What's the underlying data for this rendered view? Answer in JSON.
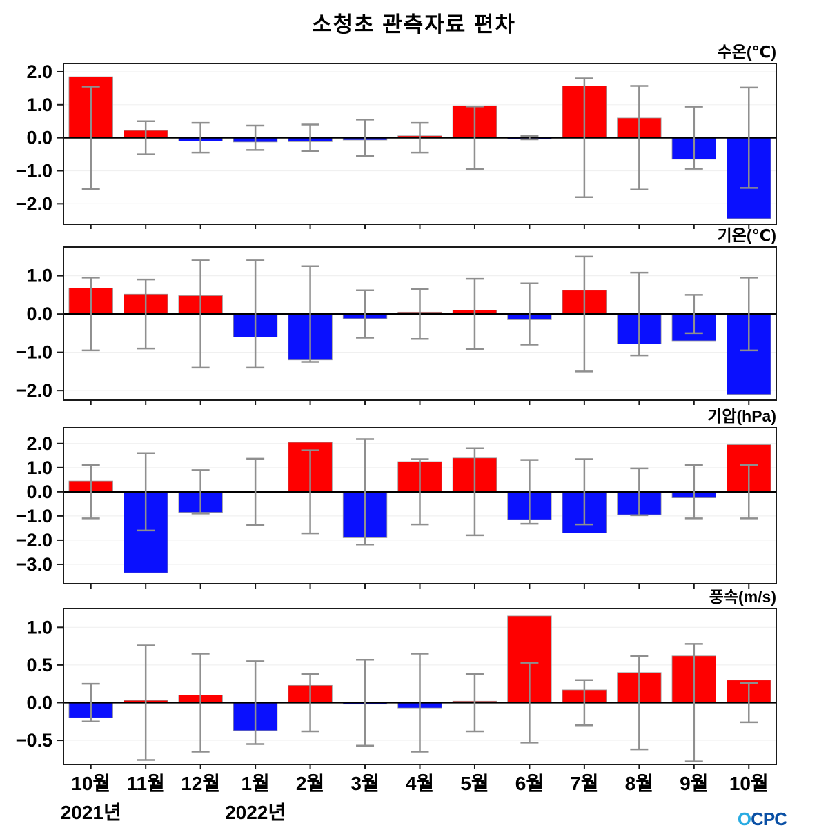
{
  "title": "소청초 관측자료 편차",
  "x_axis": {
    "categories": [
      "10월",
      "11월",
      "12월",
      "1월",
      "2월",
      "3월",
      "4월",
      "5월",
      "6월",
      "7월",
      "8월",
      "9월",
      "10월"
    ],
    "year_labels": [
      {
        "text": "2021년",
        "month_index": 0
      },
      {
        "text": "2022년",
        "month_index": 3
      }
    ]
  },
  "logo": {
    "first": "O",
    "rest": "CPC"
  },
  "style": {
    "positive": "#fe0000",
    "negative": "#0a10fe",
    "error": "#8f8f8f",
    "axis": "#1a1a1a",
    "grid": "#f0f0f0",
    "bar_edge": "#9a9a9a",
    "zero_line": "#000000",
    "logo_first": "#29abe2",
    "logo_rest": "#0a50a5"
  },
  "chart_data": [
    {
      "type": "bar",
      "title": "수온(℃)",
      "categories": [
        "10월",
        "11월",
        "12월",
        "1월",
        "2월",
        "3월",
        "4월",
        "5월",
        "6월",
        "7월",
        "8월",
        "9월",
        "10월"
      ],
      "values": [
        1.85,
        0.22,
        -0.1,
        -0.13,
        -0.12,
        -0.07,
        0.06,
        0.97,
        -0.04,
        1.57,
        0.6,
        -0.65,
        -2.45
      ],
      "errors": [
        1.55,
        0.5,
        0.45,
        0.37,
        0.4,
        0.55,
        0.45,
        0.95,
        0.05,
        1.8,
        1.57,
        0.94,
        1.52
      ],
      "error_bars_centered_at_zero": true,
      "ylim": [
        -2.62,
        2.25
      ],
      "yticks": [
        -2,
        -1,
        0,
        1,
        2
      ],
      "grid": true,
      "legend": false
    },
    {
      "type": "bar",
      "title": "기온(℃)",
      "categories": [
        "10월",
        "11월",
        "12월",
        "1월",
        "2월",
        "3월",
        "4월",
        "5월",
        "6월",
        "7월",
        "8월",
        "9월",
        "10월"
      ],
      "values": [
        0.68,
        0.52,
        0.48,
        -0.6,
        -1.2,
        -0.12,
        0.05,
        0.1,
        -0.15,
        0.62,
        -0.78,
        -0.7,
        -2.1
      ],
      "errors": [
        0.95,
        0.9,
        1.4,
        1.4,
        1.25,
        0.62,
        0.65,
        0.92,
        0.8,
        1.5,
        1.08,
        0.5,
        0.95
      ],
      "error_bars_centered_at_zero": true,
      "ylim": [
        -2.25,
        1.75
      ],
      "yticks": [
        -2,
        -1,
        0,
        1
      ],
      "grid": true,
      "legend": false
    },
    {
      "type": "bar",
      "title": "기압(hPa)",
      "categories": [
        "10월",
        "11월",
        "12월",
        "1월",
        "2월",
        "3월",
        "4월",
        "5월",
        "6월",
        "7월",
        "8월",
        "9월",
        "10월"
      ],
      "values": [
        0.45,
        -3.35,
        -0.85,
        -0.05,
        2.05,
        -1.9,
        1.25,
        1.4,
        -1.15,
        -1.7,
        -0.95,
        -0.25,
        1.95
      ],
      "errors": [
        1.1,
        1.6,
        0.9,
        1.37,
        1.72,
        2.18,
        1.35,
        1.8,
        1.32,
        1.35,
        0.97,
        1.1,
        1.1
      ],
      "error_bars_centered_at_zero": true,
      "ylim": [
        -3.8,
        2.65
      ],
      "yticks": [
        -3,
        -2,
        -1,
        0,
        1,
        2
      ],
      "grid": true,
      "legend": false
    },
    {
      "type": "bar",
      "title": "풍속(m/s)",
      "categories": [
        "10월",
        "11월",
        "12월",
        "1월",
        "2월",
        "3월",
        "4월",
        "5월",
        "6월",
        "7월",
        "8월",
        "9월",
        "10월"
      ],
      "values": [
        -0.2,
        0.03,
        0.1,
        -0.37,
        0.23,
        -0.02,
        -0.07,
        0.02,
        1.15,
        0.17,
        0.4,
        0.62,
        0.3
      ],
      "errors": [
        0.25,
        0.76,
        0.65,
        0.55,
        0.38,
        0.57,
        0.65,
        0.38,
        0.53,
        0.3,
        0.62,
        0.78,
        0.26
      ],
      "error_bars_centered_at_zero": true,
      "ylim": [
        -0.82,
        1.25
      ],
      "yticks": [
        -0.5,
        0,
        0.5,
        1
      ],
      "grid": true,
      "legend": false
    }
  ]
}
